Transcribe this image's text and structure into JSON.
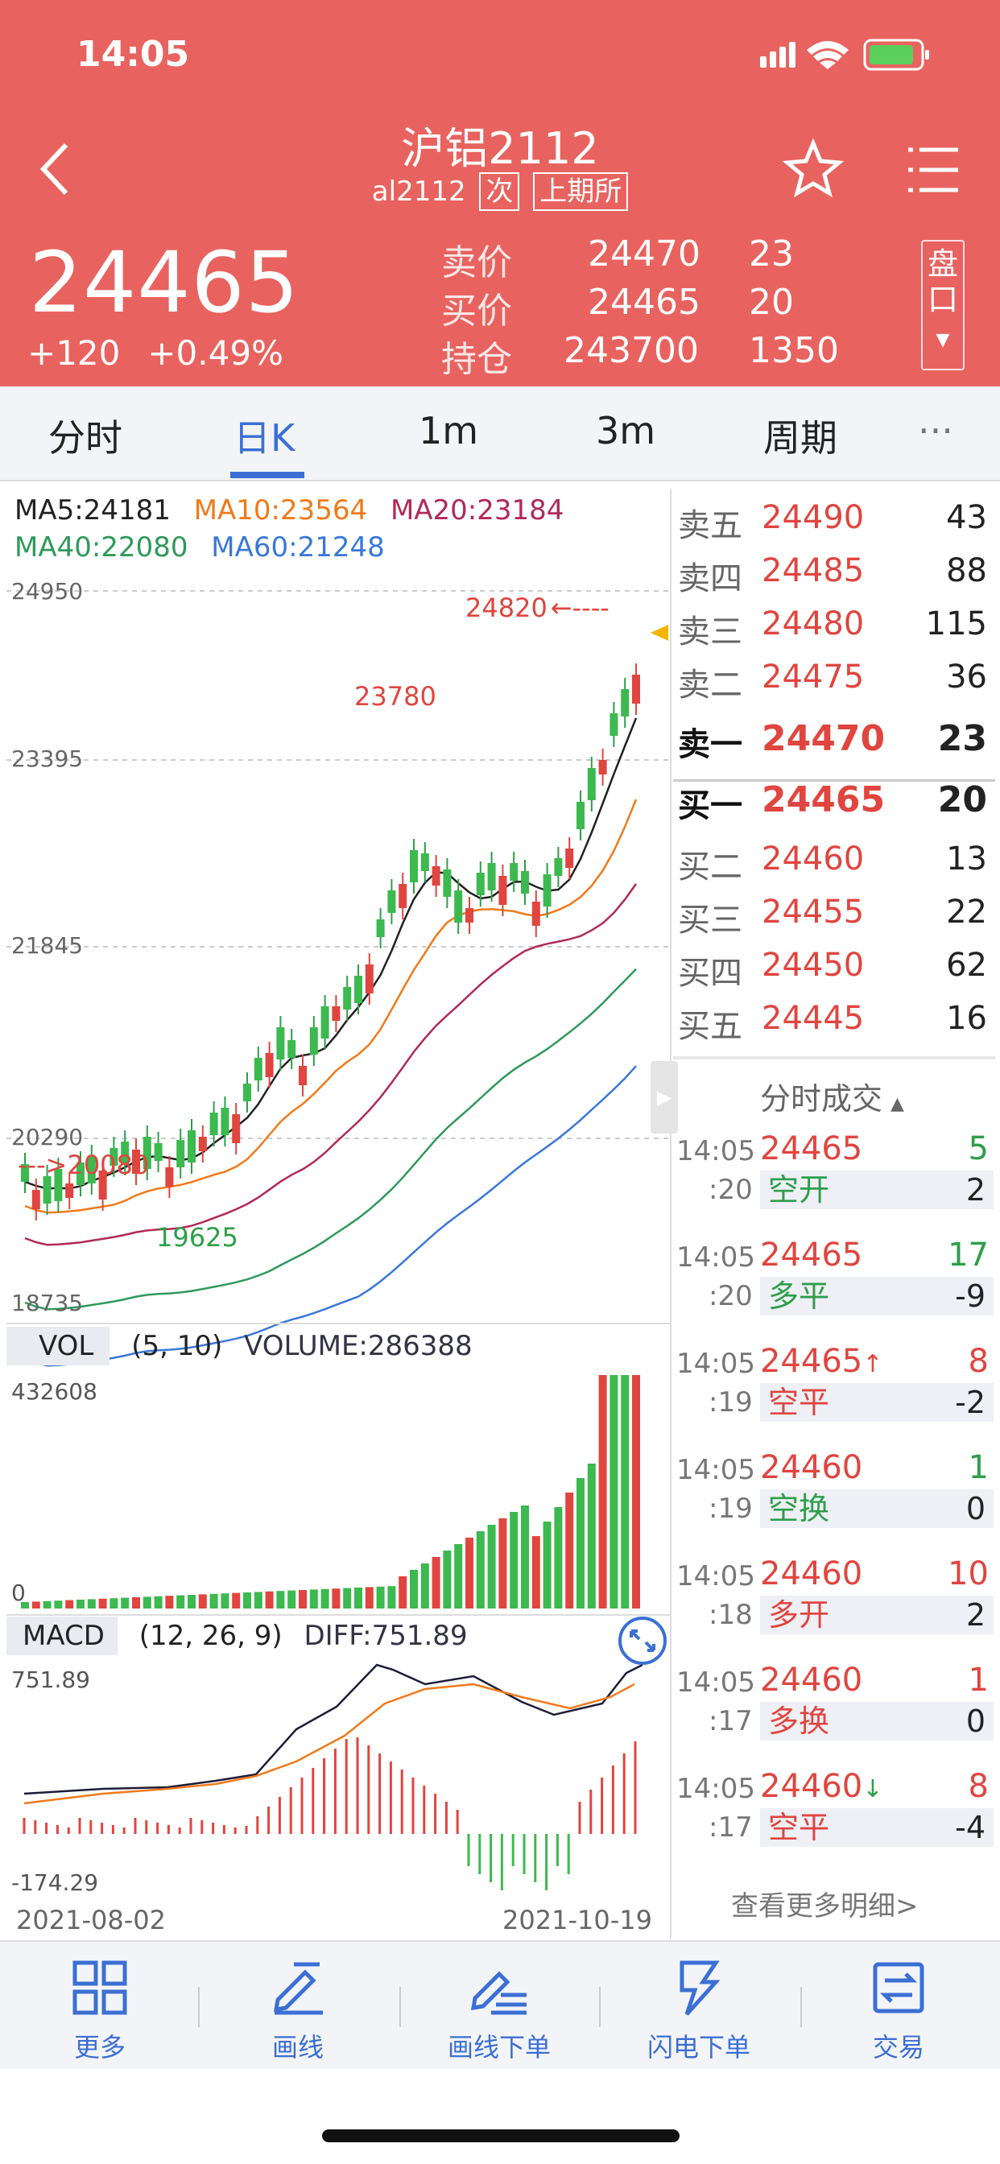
{
  "status": {
    "time": "14:05"
  },
  "header": {
    "title": "沪铝2112",
    "code": "al2112",
    "tag1": "次",
    "tag2": "上期所",
    "price": "24465",
    "change": "+120",
    "change_pct": "+0.49%",
    "quotes": [
      {
        "label": "卖价",
        "value": "24470",
        "vol": "23"
      },
      {
        "label": "买价",
        "value": "24465",
        "vol": "20"
      },
      {
        "label": "持仓",
        "value": "243700",
        "vol": "1350"
      }
    ],
    "pankou": "盘口"
  },
  "tabs": [
    "分时",
    "日K",
    "1m",
    "3m",
    "周期",
    "···"
  ],
  "ma": {
    "ma5": "MA5:24181",
    "ma10": "MA10:23564",
    "ma20": "MA20:23184",
    "ma40": "MA40:22080",
    "ma60": "MA60:21248"
  },
  "price_axis": [
    "24950",
    "23395",
    "21845",
    "20290",
    "18735"
  ],
  "annotations": {
    "high": "23780",
    "current_high": "24820",
    "low": "19625",
    "left_mark": "20080"
  },
  "volume": {
    "label": "VOL",
    "params": "(5, 10)",
    "value": "VOLUME:286388",
    "max": "432608",
    "min": "0"
  },
  "macd": {
    "label": "MACD",
    "params": "(12, 26, 9)",
    "value": "DIFF:751.89",
    "max": "751.89",
    "min": "-174.29"
  },
  "dates": {
    "start": "2021-08-02",
    "end": "2021-10-19"
  },
  "order_book": [
    {
      "label": "卖五",
      "price": "24490",
      "vol": "43"
    },
    {
      "label": "卖四",
      "price": "24485",
      "vol": "88"
    },
    {
      "label": "卖三",
      "price": "24480",
      "vol": "115"
    },
    {
      "label": "卖二",
      "price": "24475",
      "vol": "36"
    },
    {
      "label": "卖一",
      "price": "24470",
      "vol": "23"
    },
    {
      "label": "买一",
      "price": "24465",
      "vol": "20"
    },
    {
      "label": "买二",
      "price": "24460",
      "vol": "13"
    },
    {
      "label": "买三",
      "price": "24455",
      "vol": "22"
    },
    {
      "label": "买四",
      "price": "24450",
      "vol": "62"
    },
    {
      "label": "买五",
      "price": "24445",
      "vol": "16"
    }
  ],
  "tape_title": "分时成交",
  "tape": [
    {
      "t1": "14:05",
      "t2": ":20",
      "price": "24465",
      "vol": "5",
      "type": "空开",
      "chg": "2",
      "arrow": ""
    },
    {
      "t1": "14:05",
      "t2": ":20",
      "price": "24465",
      "vol": "17",
      "type": "多平",
      "chg": "-9",
      "arrow": ""
    },
    {
      "t1": "14:05",
      "t2": ":19",
      "price": "24465",
      "vol": "8",
      "type": "空平",
      "chg": "-2",
      "arrow": "↑"
    },
    {
      "t1": "14:05",
      "t2": ":19",
      "price": "24460",
      "vol": "1",
      "type": "空换",
      "chg": "0",
      "arrow": ""
    },
    {
      "t1": "14:05",
      "t2": ":18",
      "price": "24460",
      "vol": "10",
      "type": "多开",
      "chg": "2",
      "arrow": ""
    },
    {
      "t1": "14:05",
      "t2": ":17",
      "price": "24460",
      "vol": "1",
      "type": "多换",
      "chg": "0",
      "arrow": ""
    },
    {
      "t1": "14:05",
      "t2": ":17",
      "price": "24460",
      "vol": "8",
      "type": "空平",
      "chg": "-4",
      "arrow": "↓"
    }
  ],
  "more_detail": "查看更多明细>",
  "bottom_nav": [
    {
      "label": "更多",
      "icon": "grid-icon"
    },
    {
      "label": "画线",
      "icon": "pen-line-icon"
    },
    {
      "label": "画线下单",
      "icon": "pen-order-icon"
    },
    {
      "label": "闪电下单",
      "icon": "lightning-icon"
    },
    {
      "label": "交易",
      "icon": "trade-icon"
    }
  ]
}
